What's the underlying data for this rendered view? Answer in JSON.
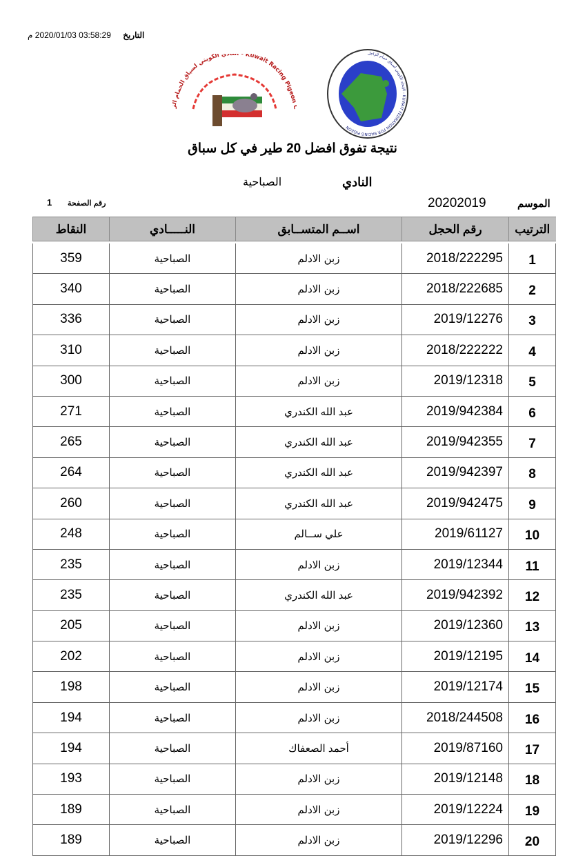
{
  "header": {
    "date_label": "التاريخ",
    "date_value": "03:58:29 2020/01/03 م",
    "club_logo_text": "النادي الكويتي لسباق الحمام الزاجل - Kuwait Racing Pigeon Club",
    "federation_logo_text": "الإتحاد الكويتي لسباق حمام الزاجل - KUWAIT FEDRATION FOR RACING PIGEON",
    "title": "نتيجة تفوق  افضل 20  طير في كل سباق",
    "club_label": "النادي",
    "club_value": "الصباحية",
    "season_label": "الموسم",
    "season_value": "20202019",
    "page_label": "رقم الصفحة",
    "page_value": "1"
  },
  "table": {
    "columns": [
      "الترتيب",
      "رقم الحجل",
      "اســم المتســابق",
      "النـــــادي",
      "النقاط"
    ],
    "rows": [
      {
        "rank": "1",
        "ring": "2018/222295",
        "name": "زبن الادلم",
        "club": "الصباحية",
        "points": "359"
      },
      {
        "rank": "2",
        "ring": "2018/222685",
        "name": "زبن الادلم",
        "club": "الصباحية",
        "points": "340"
      },
      {
        "rank": "3",
        "ring": "2019/12276",
        "name": "زبن الادلم",
        "club": "الصباحية",
        "points": "336"
      },
      {
        "rank": "4",
        "ring": "2018/222222",
        "name": "زبن الادلم",
        "club": "الصباحية",
        "points": "310"
      },
      {
        "rank": "5",
        "ring": "2019/12318",
        "name": "زبن الادلم",
        "club": "الصباحية",
        "points": "300"
      },
      {
        "rank": "6",
        "ring": "2019/942384",
        "name": "عبد الله الكندري",
        "club": "الصباحية",
        "points": "271"
      },
      {
        "rank": "7",
        "ring": "2019/942355",
        "name": "عبد الله الكندري",
        "club": "الصباحية",
        "points": "265"
      },
      {
        "rank": "8",
        "ring": "2019/942397",
        "name": "عبد الله الكندري",
        "club": "الصباحية",
        "points": "264"
      },
      {
        "rank": "9",
        "ring": "2019/942475",
        "name": "عبد الله الكندري",
        "club": "الصباحية",
        "points": "260"
      },
      {
        "rank": "10",
        "ring": "2019/61127",
        "name": "علي ســالم",
        "club": "الصباحية",
        "points": "248"
      },
      {
        "rank": "11",
        "ring": "2019/12344",
        "name": "زبن الادلم",
        "club": "الصباحية",
        "points": "235"
      },
      {
        "rank": "12",
        "ring": "2019/942392",
        "name": "عبد الله الكندري",
        "club": "الصباحية",
        "points": "235"
      },
      {
        "rank": "13",
        "ring": "2019/12360",
        "name": "زبن الادلم",
        "club": "الصباحية",
        "points": "205"
      },
      {
        "rank": "14",
        "ring": "2019/12195",
        "name": "زبن الادلم",
        "club": "الصباحية",
        "points": "202"
      },
      {
        "rank": "15",
        "ring": "2019/12174",
        "name": "زبن الادلم",
        "club": "الصباحية",
        "points": "198"
      },
      {
        "rank": "16",
        "ring": "2018/244508",
        "name": "زبن الادلم",
        "club": "الصباحية",
        "points": "194"
      },
      {
        "rank": "17",
        "ring": "2019/87160",
        "name": "أحمد الصعفاك",
        "club": "الصباحية",
        "points": "194"
      },
      {
        "rank": "18",
        "ring": "2019/12148",
        "name": "زبن الادلم",
        "club": "الصباحية",
        "points": "193"
      },
      {
        "rank": "19",
        "ring": "2019/12224",
        "name": "زبن الادلم",
        "club": "الصباحية",
        "points": "189"
      },
      {
        "rank": "20",
        "ring": "2019/12296",
        "name": "زبن الادلم",
        "club": "الصباحية",
        "points": "189"
      }
    ]
  }
}
